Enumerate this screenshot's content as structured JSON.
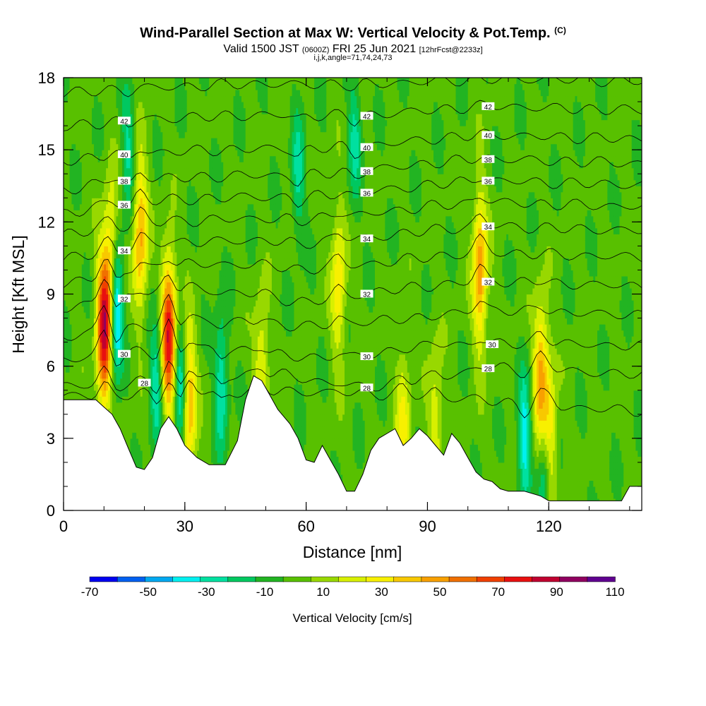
{
  "header": {
    "title": "Wind-Parallel Section at Max W: Vertical Velocity & Pot.Temp.",
    "copyright": "(C)",
    "valid_prefix": "Valid 1500 JST",
    "valid_utc": "(0600Z)",
    "valid_date": "FRI 25 Jun 2021",
    "forecast_info": "[12hrFcst@2233z]",
    "index_line": "i,j,k,angle=71,74,24,73"
  },
  "chart_data": {
    "type": "heatmap",
    "xlabel": "Distance [nm]",
    "ylabel": "Height [Kft MSL]",
    "xlim": [
      0,
      143
    ],
    "ylim": [
      0,
      18
    ],
    "x_ticks": [
      0,
      30,
      60,
      90,
      120
    ],
    "y_ticks": [
      0,
      3,
      6,
      9,
      12,
      15,
      18
    ],
    "x_minor_step": 10,
    "y_minor_step": 1,
    "colorbar": {
      "label": "Vertical Velocity [cm/s]",
      "tick_labels": [
        -70,
        -50,
        -30,
        -10,
        10,
        30,
        50,
        70,
        90,
        110
      ],
      "levels": [
        -70,
        -60,
        -50,
        -40,
        -30,
        -20,
        -10,
        0,
        10,
        20,
        30,
        40,
        50,
        60,
        70,
        80,
        90,
        100,
        110
      ],
      "colors": [
        "#0000f0",
        "#0060f0",
        "#00a8f0",
        "#00f0f0",
        "#00e0a0",
        "#00c860",
        "#22b422",
        "#58c000",
        "#98d800",
        "#d8f000",
        "#f8f000",
        "#f8c800",
        "#f8a000",
        "#f07000",
        "#f04000",
        "#e81010",
        "#c00030",
        "#900060",
        "#600090"
      ]
    },
    "terrain_height": [
      [
        0,
        4.6
      ],
      [
        8,
        4.6
      ],
      [
        10,
        4.3
      ],
      [
        12,
        4.0
      ],
      [
        14,
        3.4
      ],
      [
        16,
        2.6
      ],
      [
        18,
        1.8
      ],
      [
        20,
        1.7
      ],
      [
        22,
        2.2
      ],
      [
        24,
        3.4
      ],
      [
        26,
        3.9
      ],
      [
        28,
        3.4
      ],
      [
        30,
        2.7
      ],
      [
        33,
        2.2
      ],
      [
        36,
        1.9
      ],
      [
        40,
        1.9
      ],
      [
        43,
        2.9
      ],
      [
        45,
        4.6
      ],
      [
        47,
        5.6
      ],
      [
        49,
        5.4
      ],
      [
        51,
        4.8
      ],
      [
        53,
        4.2
      ],
      [
        56,
        3.6
      ],
      [
        58,
        3.0
      ],
      [
        60,
        2.1
      ],
      [
        62,
        2.0
      ],
      [
        64,
        2.7
      ],
      [
        66,
        2.1
      ],
      [
        68,
        1.5
      ],
      [
        70,
        0.8
      ],
      [
        72,
        0.8
      ],
      [
        74,
        1.5
      ],
      [
        76,
        2.5
      ],
      [
        78,
        3.0
      ],
      [
        80,
        3.2
      ],
      [
        82,
        3.4
      ],
      [
        84,
        2.7
      ],
      [
        86,
        3.0
      ],
      [
        88,
        3.4
      ],
      [
        90,
        3.1
      ],
      [
        92,
        2.7
      ],
      [
        94,
        2.3
      ],
      [
        96,
        3.2
      ],
      [
        98,
        2.8
      ],
      [
        100,
        2.2
      ],
      [
        102,
        1.6
      ],
      [
        104,
        1.3
      ],
      [
        106,
        1.2
      ],
      [
        108,
        0.9
      ],
      [
        110,
        0.8
      ],
      [
        114,
        0.8
      ],
      [
        118,
        0.6
      ],
      [
        120,
        0.4
      ],
      [
        124,
        0.4
      ],
      [
        130,
        0.4
      ],
      [
        138,
        0.4
      ],
      [
        140,
        1.0
      ],
      [
        143,
        1.0
      ]
    ],
    "updrafts": [
      {
        "x": 10,
        "height": 7.5,
        "peak": 90
      },
      {
        "x": 12,
        "height": 10.5,
        "peak": 40
      },
      {
        "x": 19,
        "height": 11.5,
        "peak": 50
      },
      {
        "x": 26,
        "height": 7.3,
        "peak": 85
      },
      {
        "x": 31,
        "height": 4.5,
        "peak": 50
      },
      {
        "x": 49,
        "height": 5.8,
        "peak": 30
      },
      {
        "x": 68,
        "height": 9.5,
        "peak": 35
      },
      {
        "x": 84,
        "height": 3.5,
        "peak": 30
      },
      {
        "x": 92,
        "height": 3.8,
        "peak": 25
      },
      {
        "x": 103,
        "height": 10.0,
        "peak": 55
      },
      {
        "x": 118,
        "height": 5.5,
        "peak": 50
      },
      {
        "x": 120,
        "height": 3.0,
        "peak": 45
      }
    ],
    "downdrafts": [
      {
        "x": 13,
        "height": 8.5,
        "peak": -60
      },
      {
        "x": 16,
        "height": 15.0,
        "peak": -25
      },
      {
        "x": 23,
        "height": 5.5,
        "peak": -30
      },
      {
        "x": 29,
        "height": 4.8,
        "peak": -40
      },
      {
        "x": 39,
        "height": 5.3,
        "peak": -35
      },
      {
        "x": 58,
        "height": 14.0,
        "peak": -25
      },
      {
        "x": 72,
        "height": 15.5,
        "peak": -25
      },
      {
        "x": 114,
        "height": 2.8,
        "peak": -40
      },
      {
        "x": 119,
        "height": 1.8,
        "peak": -45
      }
    ],
    "theta_levels": [
      {
        "value": 28,
        "label": "",
        "points": [
          [
            0,
            4.7
          ],
          [
            20,
            4.8
          ],
          [
            40,
            4.9
          ],
          [
            60,
            4.9
          ],
          [
            80,
            4.8
          ],
          [
            100,
            4.6
          ],
          [
            120,
            4.3
          ],
          [
            143,
            4.1
          ]
        ]
      },
      {
        "value": 28,
        "label": "28",
        "points": [
          [
            0,
            5.1
          ],
          [
            20,
            5.3
          ],
          [
            40,
            5.6
          ],
          [
            55,
            5.6
          ],
          [
            67,
            5.2
          ],
          [
            75,
            5.1
          ],
          [
            90,
            5.4
          ],
          [
            105,
            5.9
          ],
          [
            120,
            5.8
          ],
          [
            143,
            5.6
          ]
        ]
      },
      {
        "value": 30,
        "label": "30",
        "points": [
          [
            0,
            6.2
          ],
          [
            15,
            6.5
          ],
          [
            30,
            6.8
          ],
          [
            45,
            6.6
          ],
          [
            60,
            6.3
          ],
          [
            75,
            6.4
          ],
          [
            90,
            6.8
          ],
          [
            106,
            6.9
          ],
          [
            120,
            6.9
          ],
          [
            143,
            6.8
          ]
        ]
      },
      {
        "value": 30,
        "label": "",
        "points": [
          [
            0,
            7.2
          ],
          [
            15,
            7.5
          ],
          [
            30,
            7.9
          ],
          [
            45,
            7.8
          ],
          [
            60,
            7.6
          ],
          [
            75,
            7.8
          ],
          [
            90,
            8.0
          ],
          [
            105,
            8.3
          ],
          [
            120,
            8.2
          ],
          [
            143,
            8.1
          ]
        ]
      },
      {
        "value": 32,
        "label": "32",
        "points": [
          [
            0,
            8.4
          ],
          [
            15,
            8.8
          ],
          [
            30,
            9.2
          ],
          [
            45,
            9.0
          ],
          [
            60,
            8.6
          ],
          [
            75,
            9.0
          ],
          [
            90,
            9.3
          ],
          [
            105,
            9.5
          ],
          [
            120,
            9.4
          ],
          [
            143,
            9.3
          ]
        ]
      },
      {
        "value": 32,
        "label": "",
        "points": [
          [
            0,
            9.4
          ],
          [
            15,
            9.8
          ],
          [
            30,
            10.2
          ],
          [
            45,
            10.2
          ],
          [
            60,
            10.0
          ],
          [
            75,
            10.2
          ],
          [
            90,
            10.5
          ],
          [
            105,
            10.7
          ],
          [
            120,
            10.6
          ],
          [
            143,
            10.5
          ]
        ]
      },
      {
        "value": 34,
        "label": "34",
        "points": [
          [
            0,
            10.4
          ],
          [
            15,
            10.8
          ],
          [
            30,
            11.1
          ],
          [
            45,
            11.2
          ],
          [
            60,
            11.1
          ],
          [
            75,
            11.3
          ],
          [
            90,
            11.6
          ],
          [
            105,
            11.8
          ],
          [
            120,
            11.7
          ],
          [
            143,
            11.6
          ]
        ]
      },
      {
        "value": 34,
        "label": "",
        "points": [
          [
            0,
            11.4
          ],
          [
            15,
            11.8
          ],
          [
            30,
            12.0
          ],
          [
            45,
            12.1
          ],
          [
            60,
            12.1
          ],
          [
            75,
            12.3
          ],
          [
            90,
            12.6
          ],
          [
            105,
            12.8
          ],
          [
            120,
            12.7
          ],
          [
            143,
            12.6
          ]
        ]
      },
      {
        "value": 36,
        "label": "36",
        "points": [
          [
            0,
            12.3
          ],
          [
            15,
            12.7
          ],
          [
            30,
            12.9
          ],
          [
            45,
            13.0
          ],
          [
            60,
            13.0
          ],
          [
            75,
            13.2
          ],
          [
            90,
            13.5
          ],
          [
            105,
            13.7
          ],
          [
            120,
            13.6
          ],
          [
            143,
            13.5
          ]
        ]
      },
      {
        "value": 38,
        "label": "38",
        "points": [
          [
            0,
            13.3
          ],
          [
            15,
            13.7
          ],
          [
            30,
            13.8
          ],
          [
            45,
            13.9
          ],
          [
            60,
            13.9
          ],
          [
            75,
            14.1
          ],
          [
            90,
            14.4
          ],
          [
            105,
            14.6
          ],
          [
            120,
            14.5
          ],
          [
            143,
            14.4
          ]
        ]
      },
      {
        "value": 40,
        "label": "40",
        "points": [
          [
            0,
            14.5
          ],
          [
            15,
            14.8
          ],
          [
            30,
            14.9
          ],
          [
            45,
            15.0
          ],
          [
            60,
            15.0
          ],
          [
            75,
            15.1
          ],
          [
            90,
            15.4
          ],
          [
            105,
            15.6
          ],
          [
            120,
            15.5
          ],
          [
            143,
            15.4
          ]
        ]
      },
      {
        "value": 42,
        "label": "42",
        "points": [
          [
            0,
            15.9
          ],
          [
            15,
            16.2
          ],
          [
            30,
            16.3
          ],
          [
            45,
            16.4
          ],
          [
            60,
            16.4
          ],
          [
            75,
            16.4
          ],
          [
            90,
            16.6
          ],
          [
            105,
            16.8
          ],
          [
            120,
            16.7
          ],
          [
            143,
            16.6
          ]
        ]
      },
      {
        "value": 42,
        "label": "",
        "points": [
          [
            0,
            17.3
          ],
          [
            15,
            17.5
          ],
          [
            30,
            17.6
          ],
          [
            45,
            17.7
          ],
          [
            60,
            17.7
          ],
          [
            75,
            17.7
          ],
          [
            90,
            17.8
          ],
          [
            105,
            17.9
          ],
          [
            120,
            17.9
          ],
          [
            143,
            17.8
          ]
        ]
      }
    ]
  }
}
